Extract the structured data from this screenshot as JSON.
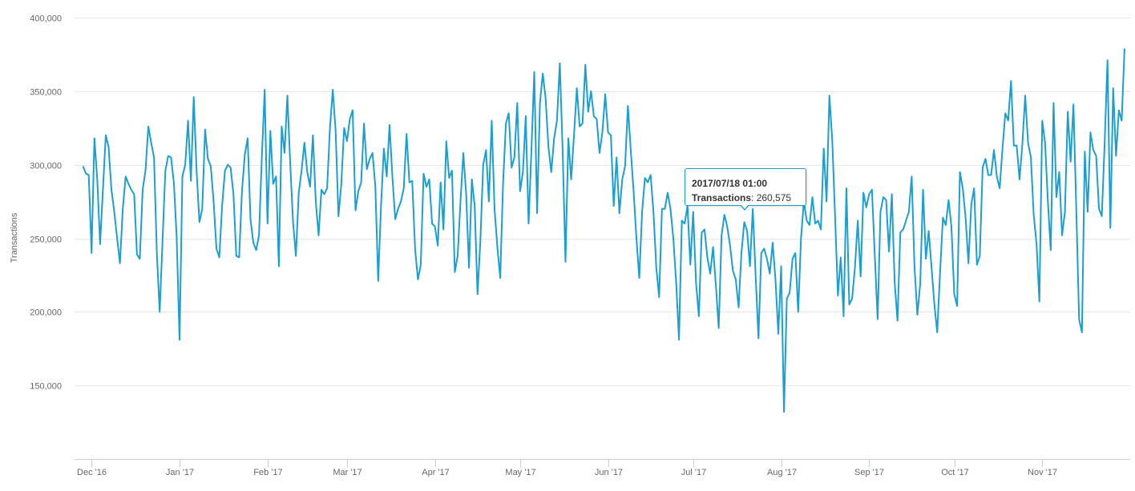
{
  "chart_data": {
    "type": "line",
    "title": "",
    "xlabel": "",
    "ylabel": "Transactions",
    "ylim": [
      100000,
      400000
    ],
    "yticks": [
      150000,
      200000,
      250000,
      300000,
      350000,
      400000
    ],
    "ytick_labels": [
      "150,000",
      "200,000",
      "250,000",
      "300,000",
      "350,000",
      "400,000"
    ],
    "xlim": [
      "2016-11-25",
      "2017-12-02"
    ],
    "xticks": [
      "2016-12-01",
      "2017-01-01",
      "2017-02-01",
      "2017-03-01",
      "2017-04-01",
      "2017-05-01",
      "2017-06-01",
      "2017-07-01",
      "2017-08-01",
      "2017-09-01",
      "2017-10-01",
      "2017-11-01"
    ],
    "xtick_labels": [
      "Dec '16",
      "Jan '17",
      "Feb '17",
      "Mar '17",
      "Apr '17",
      "May '17",
      "Jun '17",
      "Jul '17",
      "Aug '17",
      "Sep '17",
      "Oct '17",
      "Nov '17"
    ],
    "grid": true,
    "legend": "none",
    "series": [
      {
        "color": "#1a9fd0",
        "start_date": "2016-11-28",
        "step": "day",
        "values": [
          299000,
          294000,
          293000,
          240000,
          318000,
          290000,
          246000,
          283000,
          320000,
          312000,
          283000,
          268000,
          250000,
          233000,
          270000,
          292000,
          287000,
          283000,
          280000,
          239000,
          236000,
          283000,
          296000,
          326000,
          315000,
          305000,
          240000,
          200000,
          248000,
          296000,
          306000,
          305000,
          288000,
          250000,
          181000,
          292000,
          300000,
          330000,
          289000,
          346000,
          296000,
          261000,
          270000,
          324000,
          304000,
          299000,
          275000,
          243000,
          237000,
          272000,
          296000,
          300000,
          298000,
          280000,
          238000,
          237000,
          282000,
          307000,
          318000,
          263000,
          247000,
          242000,
          252000,
          305000,
          351000,
          260000,
          323000,
          287000,
          292000,
          231000,
          326000,
          308000,
          347000,
          301000,
          261000,
          238000,
          281000,
          296000,
          315000,
          295000,
          285000,
          320000,
          275000,
          252000,
          283000,
          280000,
          284000,
          325000,
          351000,
          323000,
          265000,
          287000,
          325000,
          316000,
          331000,
          337000,
          269000,
          282000,
          288000,
          328000,
          297000,
          304000,
          308000,
          285000,
          221000,
          272000,
          311000,
          292000,
          327000,
          292000,
          263000,
          270000,
          275000,
          284000,
          321000,
          288000,
          289000,
          243000,
          222000,
          232000,
          294000,
          285000,
          290000,
          260000,
          258000,
          245000,
          288000,
          256000,
          316000,
          291000,
          296000,
          227000,
          238000,
          275000,
          308000,
          280000,
          230000,
          290000,
          272000,
          212000,
          248000,
          300000,
          310000,
          275000,
          330000,
          270000,
          244000,
          223000,
          287000,
          328000,
          335000,
          298000,
          305000,
          342000,
          282000,
          295000,
          333000,
          260000,
          310000,
          363000,
          267000,
          342000,
          362000,
          345000,
          312000,
          295000,
          318000,
          330000,
          369000,
          310000,
          234000,
          318000,
          290000,
          320000,
          352000,
          326000,
          328000,
          368000,
          336000,
          350000,
          333000,
          331000,
          308000,
          322000,
          348000,
          322000,
          320000,
          272000,
          305000,
          267000,
          290000,
          299000,
          340000,
          310000,
          282000,
          250000,
          223000,
          268000,
          291000,
          288000,
          293000,
          268000,
          230000,
          210000,
          270000,
          270000,
          281000,
          270000,
          250000,
          220000,
          181000,
          262000,
          260000,
          272000,
          232000,
          268000,
          220000,
          197000,
          254000,
          256000,
          237000,
          226000,
          244000,
          218000,
          189000,
          252000,
          266000,
          258000,
          245000,
          228000,
          222000,
          203000,
          240000,
          261000,
          255000,
          231000,
          270000,
          225000,
          182000,
          240000,
          243000,
          236000,
          226000,
          247000,
          222000,
          185000,
          231000,
          132000,
          209000,
          213000,
          236000,
          240000,
          200000,
          250000,
          275000,
          262000,
          259000,
          278000,
          260000,
          262000,
          256000,
          311000,
          275000,
          347000,
          317000,
          265000,
          211000,
          237000,
          197000,
          284000,
          205000,
          209000,
          230000,
          262000,
          224000,
          281000,
          271000,
          280000,
          283000,
          238000,
          195000,
          268000,
          278000,
          276000,
          241000,
          280000,
          220000,
          194000,
          254000,
          256000,
          262000,
          268000,
          292000,
          230000,
          198000,
          219000,
          283000,
          236000,
          255000,
          230000,
          205000,
          186000,
          227000,
          264000,
          259000,
          276000,
          258000,
          212000,
          204000,
          295000,
          284000,
          264000,
          233000,
          273000,
          284000,
          232000,
          238000,
          298000,
          304000,
          293000,
          293000,
          310000,
          292000,
          284000,
          311000,
          335000,
          330000,
          357000,
          313000,
          313000,
          290000,
          314000,
          347000,
          315000,
          305000,
          266000,
          246000,
          207000,
          330000,
          315000,
          275000,
          242000,
          342000,
          278000,
          295000,
          252000,
          268000,
          336000,
          302000,
          341000,
          270000,
          195000,
          186000,
          309000,
          268000,
          322000,
          310000,
          306000,
          270000,
          265000,
          315000,
          371000,
          257000,
          352000,
          306000,
          337000,
          330000,
          379000
        ]
      }
    ],
    "tooltip": {
      "date": "2017/07/18 01:00",
      "label": "Transactions",
      "value_text": "260,575",
      "value": 260575
    }
  }
}
